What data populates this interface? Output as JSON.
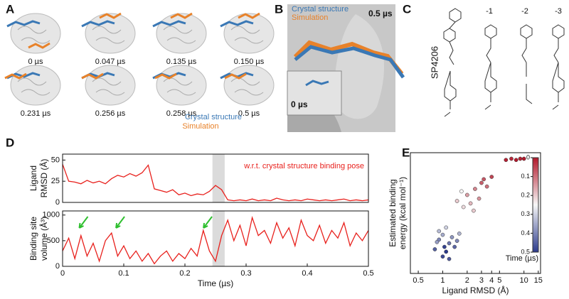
{
  "panels": {
    "A": {
      "label": "A",
      "times": [
        "0 µs",
        "0.047 µs",
        "0.135 µs",
        "0.150 µs",
        "0.231 µs",
        "0.256 µs",
        "0.258 µs",
        "0.5 µs"
      ],
      "legend": [
        "Crystal structure",
        "Simulation"
      ]
    },
    "B": {
      "label": "B",
      "legend": [
        "Crystal structure",
        "Simulation"
      ],
      "main_time": "0.5 µs",
      "inset_time": "0 µs"
    },
    "C": {
      "label": "C",
      "compounds": [
        "SP4206",
        "-1",
        "-2",
        "-3"
      ]
    }
  },
  "chart_data": [
    {
      "type": "line",
      "panel_label": "D",
      "ylabel": [
        "Ligand",
        "RMSD (Å)"
      ],
      "annotation": "w.r.t. crystal structure binding pose",
      "color": "#e8201c",
      "x": [
        0,
        0.01,
        0.02,
        0.03,
        0.04,
        0.05,
        0.06,
        0.07,
        0.08,
        0.09,
        0.1,
        0.11,
        0.12,
        0.13,
        0.14,
        0.15,
        0.16,
        0.17,
        0.18,
        0.19,
        0.2,
        0.21,
        0.22,
        0.23,
        0.24,
        0.25,
        0.26,
        0.27,
        0.28,
        0.29,
        0.3,
        0.31,
        0.32,
        0.33,
        0.34,
        0.35,
        0.36,
        0.37,
        0.38,
        0.39,
        0.4,
        0.41,
        0.42,
        0.43,
        0.44,
        0.45,
        0.46,
        0.47,
        0.48,
        0.49,
        0.5
      ],
      "values": [
        45,
        25,
        24,
        22,
        26,
        23,
        25,
        22,
        28,
        32,
        30,
        34,
        31,
        35,
        44,
        16,
        14,
        12,
        15,
        9,
        11,
        8,
        10,
        9,
        13,
        20,
        15,
        3,
        2,
        3,
        2,
        4,
        2,
        3,
        2,
        5,
        3,
        2,
        3,
        2,
        4,
        3,
        2,
        3,
        2,
        3,
        4,
        2,
        3,
        2,
        3
      ],
      "xlim": [
        0,
        0.5
      ],
      "ylim": [
        0,
        57
      ],
      "yticks": [
        0,
        25,
        50
      ],
      "shaded_range": [
        0.245,
        0.265
      ]
    },
    {
      "type": "line",
      "ylabel": [
        "Binding site",
        "volume (Å³)"
      ],
      "xlabel": "Time (µs)",
      "color": "#e8201c",
      "x": [
        0,
        0.01,
        0.02,
        0.03,
        0.04,
        0.05,
        0.06,
        0.07,
        0.08,
        0.09,
        0.1,
        0.11,
        0.12,
        0.13,
        0.14,
        0.15,
        0.16,
        0.17,
        0.18,
        0.19,
        0.2,
        0.21,
        0.22,
        0.23,
        0.24,
        0.25,
        0.26,
        0.27,
        0.28,
        0.29,
        0.3,
        0.31,
        0.32,
        0.33,
        0.34,
        0.35,
        0.36,
        0.37,
        0.38,
        0.39,
        0.4,
        0.41,
        0.42,
        0.43,
        0.44,
        0.45,
        0.46,
        0.47,
        0.48,
        0.49,
        0.5
      ],
      "values": [
        300,
        550,
        150,
        600,
        200,
        450,
        100,
        500,
        650,
        200,
        400,
        150,
        300,
        100,
        250,
        50,
        200,
        300,
        100,
        250,
        150,
        350,
        200,
        700,
        300,
        100,
        600,
        900,
        500,
        800,
        400,
        950,
        600,
        700,
        450,
        850,
        550,
        750,
        400,
        900,
        600,
        500,
        800,
        450,
        700,
        550,
        850,
        400,
        650,
        500,
        700
      ],
      "xlim": [
        0,
        0.5
      ],
      "ylim": [
        0,
        1080
      ],
      "yticks": [
        0,
        500,
        1000
      ],
      "xticks": [
        0,
        0.1,
        0.2,
        0.3,
        0.4,
        0.5
      ],
      "shaded_range": [
        0.245,
        0.265
      ],
      "arrows_x": [
        0.025,
        0.085,
        0.228
      ]
    },
    {
      "type": "scatter",
      "panel_label": "E",
      "xlabel": "Ligand RMSD (Å)",
      "ylabel": [
        "Estimated binding",
        "energy (kcal mol⁻¹)"
      ],
      "log_x": true,
      "x": [
        0.8,
        0.9,
        1.0,
        1.1,
        1.2,
        1.3,
        1.0,
        0.9,
        1.4,
        1.1,
        1.5,
        1.2,
        0.85,
        1.05,
        1.6,
        1.5,
        2.0,
        2.5,
        3.0,
        3.5,
        1.8,
        2.2,
        4.0,
        2.8,
        1.7,
        3.2,
        2.4,
        6,
        7,
        8,
        9,
        10
      ],
      "values": [
        20,
        28,
        32,
        18,
        25,
        30,
        14,
        35,
        22,
        38,
        27,
        12,
        26,
        22,
        33,
        60,
        65,
        70,
        75,
        72,
        55,
        58,
        80,
        62,
        68,
        78,
        52,
        94,
        95,
        94,
        95,
        95
      ],
      "color_values": [
        0.45,
        0.4,
        0.35,
        0.5,
        0.42,
        0.38,
        0.48,
        0.33,
        0.44,
        0.3,
        0.4,
        0.46,
        0.37,
        0.49,
        0.34,
        0.2,
        0.15,
        0.12,
        0.08,
        0.1,
        0.22,
        0.18,
        0.05,
        0.14,
        0.25,
        0.07,
        0.2,
        0.01,
        0.02,
        0.0,
        0.01,
        0.0
      ],
      "xlim": [
        0.4,
        16
      ],
      "ylim": [
        0,
        100
      ],
      "xticks": [
        0.5,
        1,
        2,
        3,
        4,
        5,
        10,
        15
      ],
      "colorbar": {
        "label": "Time (µs)",
        "lim": [
          0,
          0.5
        ],
        "ticks": [
          0,
          0.1,
          0.2,
          0.3,
          0.4,
          0.5
        ]
      }
    }
  ]
}
